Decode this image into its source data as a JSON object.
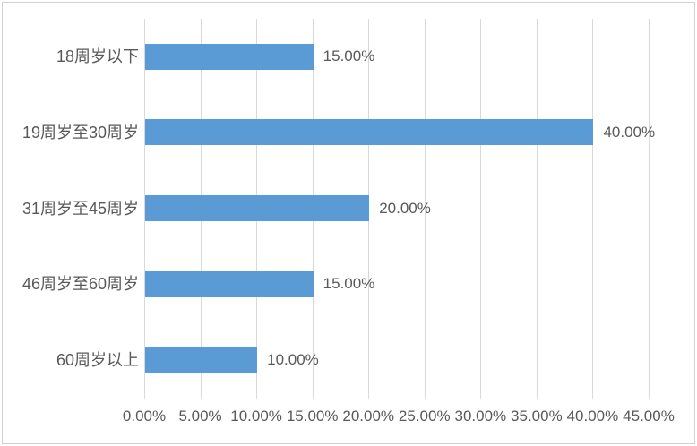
{
  "chart_data": {
    "type": "bar",
    "orientation": "horizontal",
    "title": "",
    "xlabel": "",
    "ylabel": "",
    "categories": [
      "18周岁以下",
      "19周岁至30周岁",
      "31周岁至45周岁",
      "46周岁至60周岁",
      "60周岁以上"
    ],
    "values": [
      15,
      40,
      20,
      15,
      10
    ],
    "data_labels": [
      "15.00%",
      "40.00%",
      "20.00%",
      "15.00%",
      "10.00%"
    ],
    "x_ticks": [
      0,
      5,
      10,
      15,
      20,
      25,
      30,
      35,
      40,
      45
    ],
    "x_tick_labels": [
      "0.00%",
      "5.00%",
      "10.00%",
      "15.00%",
      "20.00%",
      "25.00%",
      "30.00%",
      "35.00%",
      "40.00%",
      "45.00%"
    ],
    "xlim": [
      0,
      45
    ],
    "grid": "vertical",
    "legend": "none",
    "colors": {
      "bar": "#5b9bd5",
      "gridline": "#d9d9d9",
      "text": "#595959",
      "frame_border": "#d2d2d2",
      "background": "#ffffff"
    }
  }
}
